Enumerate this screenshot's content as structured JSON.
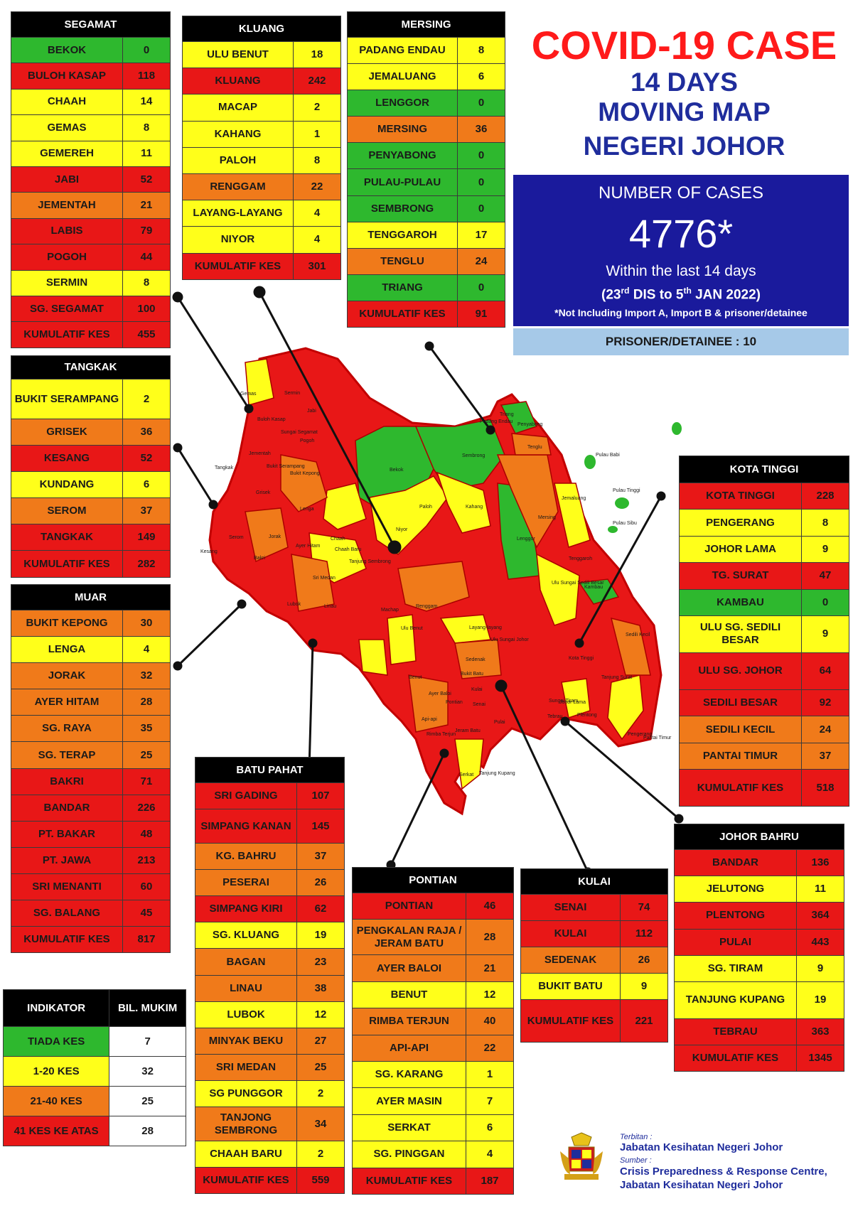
{
  "title": {
    "main": "COVID-19 CASE",
    "line1": "14 DAYS",
    "line2": "MOVING MAP",
    "line3": "NEGERI JOHOR"
  },
  "cases": {
    "label": "NUMBER OF CASES",
    "total": "4776*",
    "within": "Within the last 14 days",
    "range_open": "(23",
    "range_sup1": "rd",
    "range_mid": " DIS to 5",
    "range_sup2": "th",
    "range_close": " JAN 2022)",
    "note": "*Not Including Import A, Import B & prisoner/detainee"
  },
  "prisoner": "PRISONER/DETAINEE : 10",
  "colors": {
    "green": "#2eb82e",
    "yellow": "#ffff1a",
    "orange": "#f07a1a",
    "red": "#e81717",
    "blue_box": "#1a1a9c"
  },
  "districts": {
    "segamat": {
      "name": "SEGAMAT",
      "rows": [
        {
          "name": "BEKOK",
          "value": "0",
          "level": "g"
        },
        {
          "name": "BULOH KASAP",
          "value": "118",
          "level": "r"
        },
        {
          "name": "CHAAH",
          "value": "14",
          "level": "y"
        },
        {
          "name": "GEMAS",
          "value": "8",
          "level": "y"
        },
        {
          "name": "GEMEREH",
          "value": "11",
          "level": "y"
        },
        {
          "name": "JABI",
          "value": "52",
          "level": "r"
        },
        {
          "name": "JEMENTAH",
          "value": "21",
          "level": "o"
        },
        {
          "name": "LABIS",
          "value": "79",
          "level": "r"
        },
        {
          "name": "POGOH",
          "value": "44",
          "level": "r"
        },
        {
          "name": "SERMIN",
          "value": "8",
          "level": "y"
        },
        {
          "name": "SG. SEGAMAT",
          "value": "100",
          "level": "r"
        },
        {
          "name": "KUMULATIF KES",
          "value": "455",
          "level": "r"
        }
      ]
    },
    "kluang": {
      "name": "KLUANG",
      "rows": [
        {
          "name": "ULU BENUT",
          "value": "18",
          "level": "y"
        },
        {
          "name": "KLUANG",
          "value": "242",
          "level": "r"
        },
        {
          "name": "MACAP",
          "value": "2",
          "level": "y"
        },
        {
          "name": "KAHANG",
          "value": "1",
          "level": "y"
        },
        {
          "name": "PALOH",
          "value": "8",
          "level": "y"
        },
        {
          "name": "RENGGAM",
          "value": "22",
          "level": "o"
        },
        {
          "name": "LAYANG-LAYANG",
          "value": "4",
          "level": "y"
        },
        {
          "name": "NIYOR",
          "value": "4",
          "level": "y"
        },
        {
          "name": "KUMULATIF KES",
          "value": "301",
          "level": "r"
        }
      ]
    },
    "mersing": {
      "name": "MERSING",
      "rows": [
        {
          "name": "PADANG ENDAU",
          "value": "8",
          "level": "y"
        },
        {
          "name": "JEMALUANG",
          "value": "6",
          "level": "y"
        },
        {
          "name": "LENGGOR",
          "value": "0",
          "level": "g"
        },
        {
          "name": "MERSING",
          "value": "36",
          "level": "o"
        },
        {
          "name": "PENYABONG",
          "value": "0",
          "level": "g"
        },
        {
          "name": "PULAU-PULAU",
          "value": "0",
          "level": "g"
        },
        {
          "name": "SEMBRONG",
          "value": "0",
          "level": "g"
        },
        {
          "name": "TENGGAROH",
          "value": "17",
          "level": "y"
        },
        {
          "name": "TENGLU",
          "value": "24",
          "level": "o"
        },
        {
          "name": "TRIANG",
          "value": "0",
          "level": "g"
        },
        {
          "name": "KUMULATIF KES",
          "value": "91",
          "level": "r"
        }
      ]
    },
    "tangkak": {
      "name": "TANGKAK",
      "rows": [
        {
          "name": "BUKIT SERAMPANG",
          "value": "2",
          "level": "y",
          "tall": true
        },
        {
          "name": "GRISEK",
          "value": "36",
          "level": "o"
        },
        {
          "name": "KESANG",
          "value": "52",
          "level": "r"
        },
        {
          "name": "KUNDANG",
          "value": "6",
          "level": "y"
        },
        {
          "name": "SEROM",
          "value": "37",
          "level": "o"
        },
        {
          "name": "TANGKAK",
          "value": "149",
          "level": "r"
        },
        {
          "name": "KUMULATIF KES",
          "value": "282",
          "level": "r"
        }
      ]
    },
    "muar": {
      "name": "MUAR",
      "rows": [
        {
          "name": "BUKIT KEPONG",
          "value": "30",
          "level": "o"
        },
        {
          "name": "LENGA",
          "value": "4",
          "level": "y"
        },
        {
          "name": "JORAK",
          "value": "32",
          "level": "o"
        },
        {
          "name": "AYER HITAM",
          "value": "28",
          "level": "o"
        },
        {
          "name": "SG. RAYA",
          "value": "35",
          "level": "o"
        },
        {
          "name": "SG. TERAP",
          "value": "25",
          "level": "o"
        },
        {
          "name": "BAKRI",
          "value": "71",
          "level": "r"
        },
        {
          "name": "BANDAR",
          "value": "226",
          "level": "r"
        },
        {
          "name": "PT. BAKAR",
          "value": "48",
          "level": "r"
        },
        {
          "name": "PT. JAWA",
          "value": "213",
          "level": "r"
        },
        {
          "name": "SRI MENANTI",
          "value": "60",
          "level": "r"
        },
        {
          "name": "SG. BALANG",
          "value": "45",
          "level": "r"
        },
        {
          "name": "KUMULATIF KES",
          "value": "817",
          "level": "r"
        }
      ]
    },
    "batu_pahat": {
      "name": "BATU PAHAT",
      "rows": [
        {
          "name": "SRI GADING",
          "value": "107",
          "level": "r"
        },
        {
          "name": "SIMPANG KANAN",
          "value": "145",
          "level": "r",
          "tall": true
        },
        {
          "name": "KG. BAHRU",
          "value": "37",
          "level": "o"
        },
        {
          "name": "PESERAI",
          "value": "26",
          "level": "o"
        },
        {
          "name": "SIMPANG KIRI",
          "value": "62",
          "level": "r"
        },
        {
          "name": "SG. KLUANG",
          "value": "19",
          "level": "y"
        },
        {
          "name": "BAGAN",
          "value": "23",
          "level": "o"
        },
        {
          "name": "LINAU",
          "value": "38",
          "level": "o"
        },
        {
          "name": "LUBOK",
          "value": "12",
          "level": "y"
        },
        {
          "name": "MINYAK BEKU",
          "value": "27",
          "level": "o"
        },
        {
          "name": "SRI MEDAN",
          "value": "25",
          "level": "o"
        },
        {
          "name": "SG PUNGGOR",
          "value": "2",
          "level": "y"
        },
        {
          "name": "TANJONG SEMBRONG",
          "value": "34",
          "level": "o",
          "tall": true
        },
        {
          "name": "CHAAH BARU",
          "value": "2",
          "level": "y"
        },
        {
          "name": "KUMULATIF KES",
          "value": "559",
          "level": "r"
        }
      ]
    },
    "pontian": {
      "name": "PONTIAN",
      "rows": [
        {
          "name": "PONTIAN",
          "value": "46",
          "level": "r"
        },
        {
          "name": "PENGKALAN RAJA / JERAM BATU",
          "value": "28",
          "level": "o",
          "tall": true
        },
        {
          "name": "AYER BALOI",
          "value": "21",
          "level": "o"
        },
        {
          "name": "BENUT",
          "value": "12",
          "level": "y"
        },
        {
          "name": "RIMBA TERJUN",
          "value": "40",
          "level": "o"
        },
        {
          "name": "API-API",
          "value": "22",
          "level": "o"
        },
        {
          "name": "SG. KARANG",
          "value": "1",
          "level": "y"
        },
        {
          "name": "AYER MASIN",
          "value": "7",
          "level": "y"
        },
        {
          "name": "SERKAT",
          "value": "6",
          "level": "y"
        },
        {
          "name": "SG. PINGGAN",
          "value": "4",
          "level": "y"
        },
        {
          "name": "KUMULATIF KES",
          "value": "187",
          "level": "r"
        }
      ]
    },
    "kulai": {
      "name": "KULAI",
      "rows": [
        {
          "name": "SENAI",
          "value": "74",
          "level": "r"
        },
        {
          "name": "KULAI",
          "value": "112",
          "level": "r"
        },
        {
          "name": "SEDENAK",
          "value": "26",
          "level": "o"
        },
        {
          "name": "BUKIT BATU",
          "value": "9",
          "level": "y"
        },
        {
          "name": "KUMULATIF KES",
          "value": "221",
          "level": "r",
          "tall": true
        }
      ]
    },
    "kota_tinggi": {
      "name": "KOTA TINGGI",
      "rows": [
        {
          "name": "KOTA TINGGI",
          "value": "228",
          "level": "r"
        },
        {
          "name": "PENGERANG",
          "value": "8",
          "level": "y"
        },
        {
          "name": "JOHOR LAMA",
          "value": "9",
          "level": "y"
        },
        {
          "name": "TG. SURAT",
          "value": "47",
          "level": "r"
        },
        {
          "name": "KAMBAU",
          "value": "0",
          "level": "g"
        },
        {
          "name": "ULU SG. SEDILI BESAR",
          "value": "9",
          "level": "y",
          "tall": true
        },
        {
          "name": "ULU SG. JOHOR",
          "value": "64",
          "level": "r",
          "tall": true
        },
        {
          "name": "SEDILI BESAR",
          "value": "92",
          "level": "r"
        },
        {
          "name": "SEDILI KECIL",
          "value": "24",
          "level": "o"
        },
        {
          "name": "PANTAI TIMUR",
          "value": "37",
          "level": "o"
        },
        {
          "name": "KUMULATIF KES",
          "value": "518",
          "level": "r",
          "tall": true
        }
      ]
    },
    "johor_bahru": {
      "name": "JOHOR BAHRU",
      "rows": [
        {
          "name": "BANDAR",
          "value": "136",
          "level": "r"
        },
        {
          "name": "JELUTONG",
          "value": "11",
          "level": "y"
        },
        {
          "name": "PLENTONG",
          "value": "364",
          "level": "r"
        },
        {
          "name": "PULAI",
          "value": "443",
          "level": "r"
        },
        {
          "name": "SG. TIRAM",
          "value": "9",
          "level": "y"
        },
        {
          "name": "TANJUNG KUPANG",
          "value": "19",
          "level": "y",
          "tall": true
        },
        {
          "name": "TEBRAU",
          "value": "363",
          "level": "r"
        },
        {
          "name": "KUMULATIF KES",
          "value": "1345",
          "level": "r"
        }
      ]
    }
  },
  "legend": {
    "header_left": "INDIKATOR",
    "header_right": "BIL. MUKIM",
    "rows": [
      {
        "name": "TIADA KES",
        "value": "7",
        "level": "g"
      },
      {
        "name": "1-20 KES",
        "value": "32",
        "level": "y"
      },
      {
        "name": "21-40 KES",
        "value": "25",
        "level": "o"
      },
      {
        "name": "41 KES KE ATAS",
        "value": "28",
        "level": "r"
      }
    ]
  },
  "footer": {
    "terbitan_label": "Terbitan :",
    "terbitan": "Jabatan Kesihatan Negeri Johor",
    "sumber_label": "Sumber :",
    "sumber1": "Crisis Preparedness & Response Centre,",
    "sumber2": "Jabatan Kesihatan Negeri Johor"
  },
  "map_labels": [
    "Gemas",
    "Sermin",
    "Buloh Kasap",
    "Jabi",
    "Sungai Segamat",
    "Pogoh",
    "Jementah",
    "Tangkak",
    "Bukit Serampang",
    "Bukit Kepong",
    "Grisek",
    "Lenga",
    "Chaah",
    "Bekok",
    "Paloh",
    "Niyor",
    "Kahang",
    "Sembrong",
    "Padang Endau",
    "Triang",
    "Penyabong",
    "Tenglu",
    "Jemaluang",
    "Mersing",
    "Lenggor",
    "Pulau Babi",
    "Pulau Tinggi",
    "Pulau Sibu",
    "Tenggaroh",
    "Kesang",
    "Serom",
    "Jorak",
    "Ayer Hitam",
    "Chaah Baru",
    "Tanjung Sembrong",
    "Sri Medan",
    "Linau",
    "Machap",
    "Renggam",
    "Layang-layang",
    "Ulu Benut",
    "Ulu Sungai Sedili Besar",
    "Kambau",
    "Sedili Kecil",
    "Kota Tinggi",
    "Ulu Sungai Johor",
    "Sedenak",
    "Bukit Batu",
    "Senai",
    "Kulai",
    "Tebrau",
    "Plentong",
    "Sungai Tiram",
    "Pulai",
    "Pontian",
    "Jeram Batu",
    "Ayer Baloi",
    "Benut",
    "Api-api",
    "Rimba Terjun",
    "Serkat",
    "Tanjung Kupang",
    "Pengerang",
    "Pantai Timur",
    "Tanjung Surat",
    "Johor Lama",
    "Bakri",
    "Lubok"
  ]
}
